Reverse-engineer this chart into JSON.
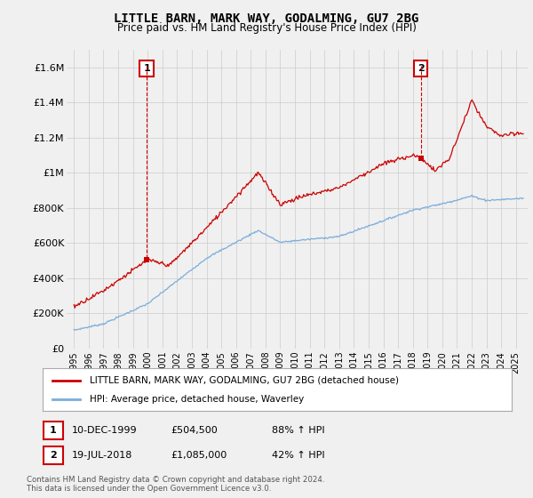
{
  "title": "LITTLE BARN, MARK WAY, GODALMING, GU7 2BG",
  "subtitle": "Price paid vs. HM Land Registry's House Price Index (HPI)",
  "ylabel_ticks": [
    "£0",
    "£200K",
    "£400K",
    "£600K",
    "£800K",
    "£1M",
    "£1.2M",
    "£1.4M",
    "£1.6M"
  ],
  "ytick_values": [
    0,
    200000,
    400000,
    600000,
    800000,
    1000000,
    1200000,
    1400000,
    1600000
  ],
  "ylim": [
    0,
    1700000
  ],
  "xmin": 1994.5,
  "xmax": 2025.8,
  "sale1_x": 1999.94,
  "sale1_y": 504500,
  "sale2_x": 2018.54,
  "sale2_y": 1085000,
  "red_line_color": "#cc0000",
  "blue_line_color": "#7aaddb",
  "annotation_box_color": "#cc0000",
  "grid_color": "#cccccc",
  "background_color": "#f0f0f0",
  "plot_bg_color": "#f0f0f0",
  "legend_label_red": "LITTLE BARN, MARK WAY, GODALMING, GU7 2BG (detached house)",
  "legend_label_blue": "HPI: Average price, detached house, Waverley",
  "note1_num": "1",
  "note1_date": "10-DEC-1999",
  "note1_price": "£504,500",
  "note1_hpi": "88% ↑ HPI",
  "note2_num": "2",
  "note2_date": "19-JUL-2018",
  "note2_price": "£1,085,000",
  "note2_hpi": "42% ↑ HPI",
  "footnote": "Contains HM Land Registry data © Crown copyright and database right 2024.\nThis data is licensed under the Open Government Licence v3.0."
}
